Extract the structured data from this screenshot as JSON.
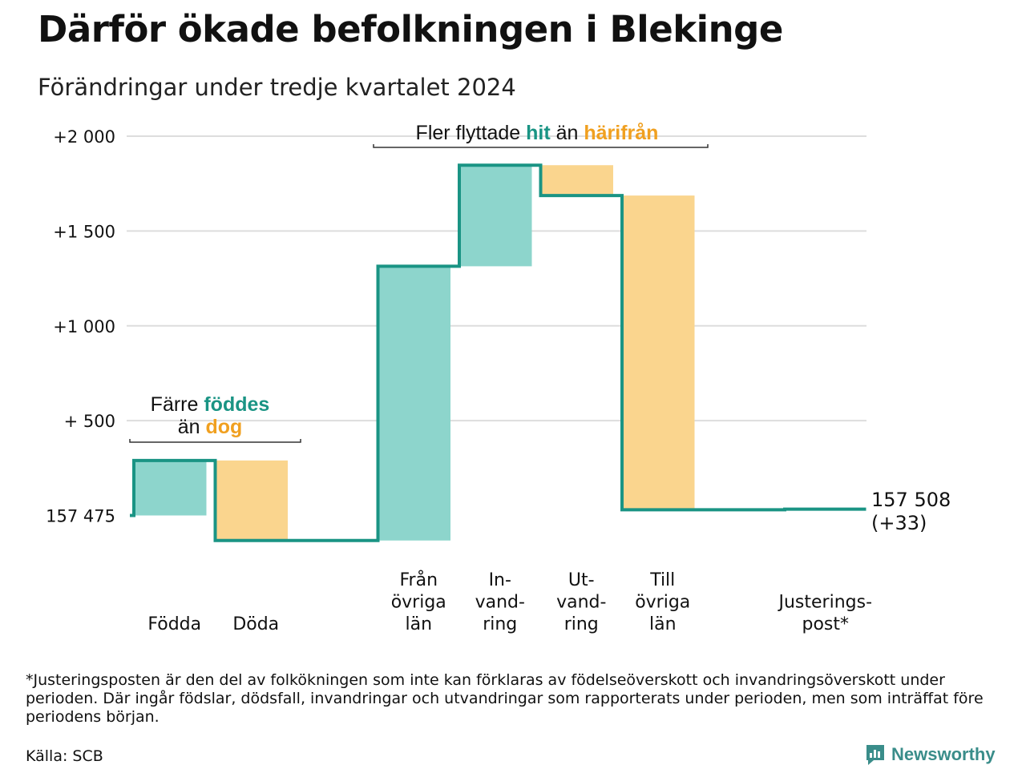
{
  "header": {
    "title": "Därför ökade befolkningen i Blekinge",
    "subtitle": "Förändringar under tredje kvartalet 2024"
  },
  "colors": {
    "increase_fill": "#8dd5cc",
    "decrease_fill": "#fad58e",
    "line": "#1a9484",
    "teal_text": "#1a9484",
    "orange_text": "#f0a020",
    "grid": "#dddddd"
  },
  "chart_data": {
    "type": "waterfall",
    "title": "Därför ökade befolkningen i Blekinge",
    "subtitle": "Förändringar under tredje kvartalet 2024",
    "baseline_value": 157475,
    "baseline_label": "157 475",
    "final_value": 157508,
    "final_label": "157 508",
    "final_change_label": "(+33)",
    "ylim": [
      -200,
      2200
    ],
    "yticks": [
      {
        "value": 2000,
        "label": "+2 000"
      },
      {
        "value": 1500,
        "label": "+1 500"
      },
      {
        "value": 1000,
        "label": "+1 000"
      },
      {
        "value": 500,
        "label": "+  500"
      }
    ],
    "grid": true,
    "steps": [
      {
        "label_lines": [
          "Födda"
        ],
        "change": 290,
        "kind": "increase"
      },
      {
        "label_lines": [
          "Döda"
        ],
        "change": -422,
        "kind": "decrease"
      },
      {
        "label_lines": [],
        "change": 0,
        "kind": "gap"
      },
      {
        "label_lines": [
          "Från",
          "övriga",
          "län"
        ],
        "change": 1446,
        "kind": "increase"
      },
      {
        "label_lines": [
          "In-",
          "vand-",
          "ring"
        ],
        "change": 533,
        "kind": "increase"
      },
      {
        "label_lines": [
          "Ut-",
          "vand-",
          "ring"
        ],
        "change": -160,
        "kind": "decrease"
      },
      {
        "label_lines": [
          "Till",
          "övriga",
          "län"
        ],
        "change": -1657,
        "kind": "decrease"
      },
      {
        "label_lines": [],
        "change": 0,
        "kind": "gap"
      },
      {
        "label_lines": [
          "Justerings-",
          "post*"
        ],
        "change": 3,
        "kind": "line"
      }
    ],
    "annotations": [
      {
        "id": "migration",
        "parts": [
          {
            "text": "Fler flyttade ",
            "style": "plain"
          },
          {
            "text": "hit",
            "style": "teal"
          },
          {
            "text": " än ",
            "style": "plain"
          },
          {
            "text": "härifrån",
            "style": "orange"
          }
        ]
      },
      {
        "id": "births",
        "lines": [
          [
            {
              "text": "Färre ",
              "style": "plain"
            },
            {
              "text": "föddes",
              "style": "teal"
            }
          ],
          [
            {
              "text": "än ",
              "style": "plain"
            },
            {
              "text": "dog",
              "style": "orange"
            }
          ]
        ]
      }
    ]
  },
  "footer": {
    "footnote": "*Justeringsposten är den del av folkökningen som inte kan förklaras av födelseöverskott och invandringsöverskott under perioden. Där ingår födslar, dödsfall, invandringar och utvandringar som rapporterats under perioden, men som inträffat före periodens början.",
    "source": "Källa: SCB",
    "logo_text": "Newsworthy"
  }
}
